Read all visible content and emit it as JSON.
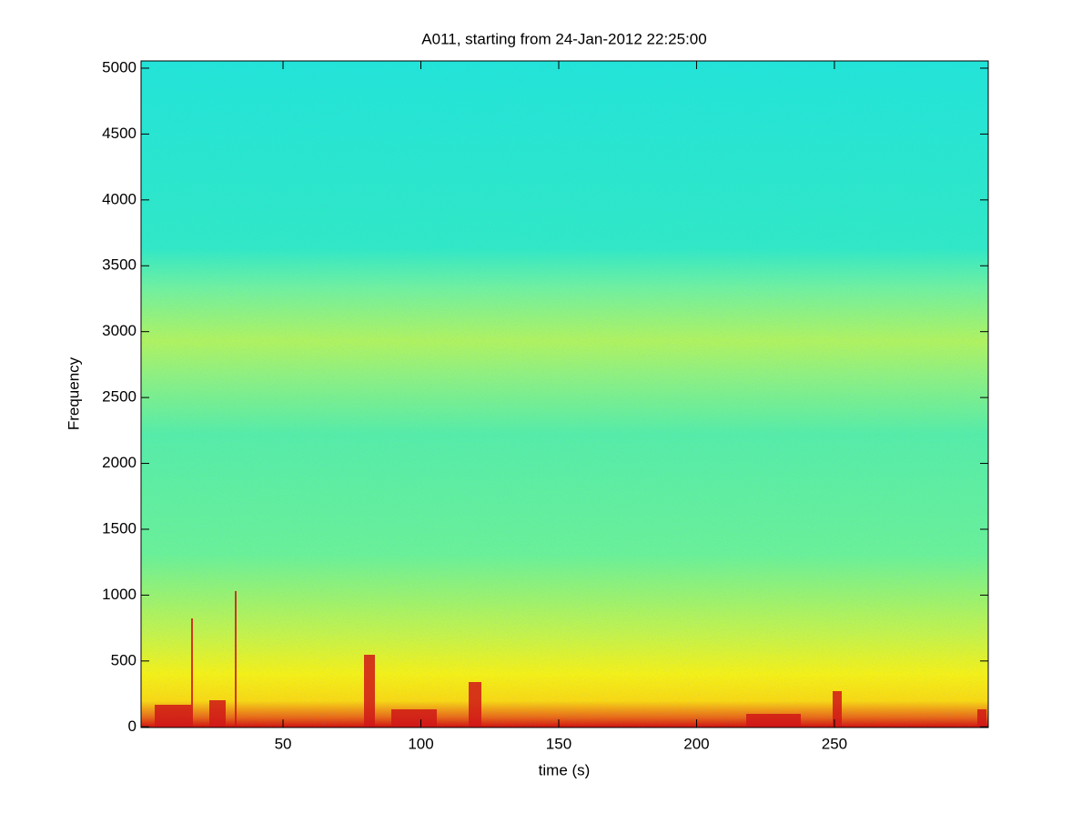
{
  "chart_data": {
    "type": "spectrogram",
    "title": "A011, starting from 24-Jan-2012 22:25:00",
    "x_label": "time (s)",
    "y_label": "Frequency",
    "xlim": [
      -1.5,
      305.8
    ],
    "xticks": [
      50,
      100,
      150,
      200,
      250
    ],
    "ylim": [
      -5,
      5055
    ],
    "yticks": [
      0,
      500,
      1000,
      1500,
      2000,
      2500,
      3000,
      3500,
      4000,
      4500,
      5000
    ],
    "colormap": "jet"
  }
}
